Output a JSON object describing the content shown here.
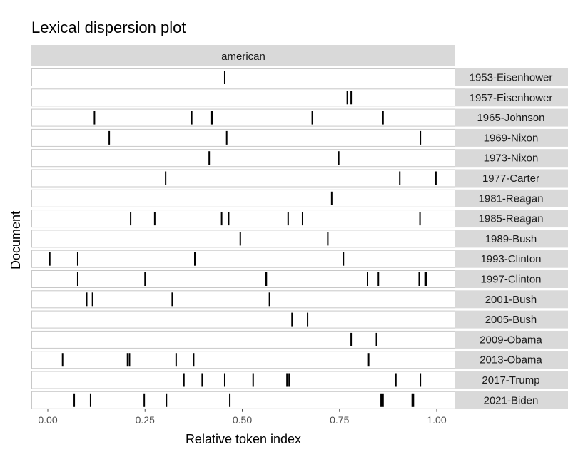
{
  "chart_data": {
    "type": "dispersion",
    "title": "Lexical dispersion plot",
    "facet": "american",
    "xlabel": "Relative token index",
    "ylabel": "Document",
    "xlim": [
      0,
      1
    ],
    "xticks": [
      "0.00",
      "0.25",
      "0.50",
      "0.75",
      "1.00"
    ],
    "documents": [
      {
        "name": "1953-Eisenhower",
        "positions": [
          0.455
        ]
      },
      {
        "name": "1957-Eisenhower",
        "positions": [
          0.77,
          0.78
        ]
      },
      {
        "name": "1965-Johnson",
        "positions": [
          0.12,
          0.37,
          0.42,
          0.423,
          0.68,
          0.862
        ]
      },
      {
        "name": "1969-Nixon",
        "positions": [
          0.158,
          0.46,
          0.958
        ]
      },
      {
        "name": "1973-Nixon",
        "positions": [
          0.415,
          0.748
        ]
      },
      {
        "name": "1977-Carter",
        "positions": [
          0.303,
          0.905,
          0.998
        ]
      },
      {
        "name": "1981-Reagan",
        "positions": [
          0.73
        ]
      },
      {
        "name": "1985-Reagan",
        "positions": [
          0.213,
          0.275,
          0.447,
          0.465,
          0.618,
          0.655,
          0.957
        ]
      },
      {
        "name": "1989-Bush",
        "positions": [
          0.495,
          0.72
        ]
      },
      {
        "name": "1993-Clinton",
        "positions": [
          0.005,
          0.077,
          0.378,
          0.76
        ]
      },
      {
        "name": "1997-Clinton",
        "positions": [
          0.077,
          0.25,
          0.56,
          0.562,
          0.822,
          0.85,
          0.955,
          0.97,
          0.973
        ]
      },
      {
        "name": "2001-Bush",
        "positions": [
          0.1,
          0.115,
          0.32,
          0.57
        ]
      },
      {
        "name": "2005-Bush",
        "positions": [
          0.628,
          0.668
        ]
      },
      {
        "name": "2009-Obama",
        "positions": [
          0.78,
          0.845
        ]
      },
      {
        "name": "2013-Obama",
        "positions": [
          0.038,
          0.205,
          0.21,
          0.33,
          0.375,
          0.825
        ]
      },
      {
        "name": "2017-Trump",
        "positions": [
          0.35,
          0.397,
          0.455,
          0.528,
          0.615,
          0.618,
          0.622,
          0.895,
          0.958
        ]
      },
      {
        "name": "2021-Biden",
        "positions": [
          0.068,
          0.11,
          0.248,
          0.305,
          0.468,
          0.857,
          0.862,
          0.937,
          0.94
        ]
      }
    ]
  }
}
